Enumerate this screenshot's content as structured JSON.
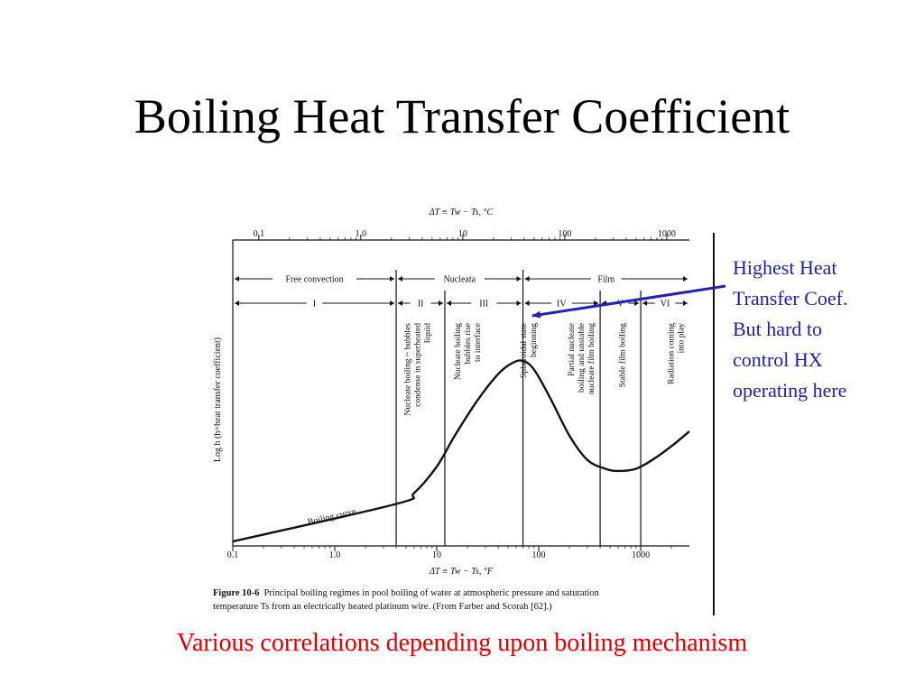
{
  "slide": {
    "title": "Boiling Heat Transfer Coefficient",
    "subtitle": "Various correlations depending upon boiling mechanism"
  },
  "callout": {
    "lines": [
      "Highest Heat",
      "Transfer Coef.",
      "But hard to",
      "control HX",
      "operating here"
    ]
  },
  "colors": {
    "title": "#000000",
    "callout": "#1f1fa8",
    "arrow": "#2222bb",
    "subtitle": "#e00000",
    "figure_ink": "#111111"
  },
  "chart_data": {
    "type": "line",
    "title": "",
    "x_top_label": "ΔT ≡ Tw − Ts, °C",
    "x_bottom_label": "ΔT ≡ Tw − Ts, °F",
    "ylabel": "Log h (h=heat transfer coefficient)",
    "x_scale": "log",
    "xlim_F": [
      0.1,
      3000
    ],
    "ylim": [
      0,
      1
    ],
    "ticks_top_C": [
      {
        "value": 0.1,
        "label": "0.1"
      },
      {
        "value": 1.0,
        "label": "1.0"
      },
      {
        "value": 10,
        "label": "10"
      },
      {
        "value": 100,
        "label": "100"
      },
      {
        "value": 1000,
        "label": "1000"
      }
    ],
    "ticks_bottom_F": [
      {
        "value": 0.1,
        "label": "0.1"
      },
      {
        "value": 1.0,
        "label": "1.0"
      },
      {
        "value": 10,
        "label": "10"
      },
      {
        "value": 100,
        "label": "100"
      },
      {
        "value": 1000,
        "label": "1000"
      }
    ],
    "regime_groups": [
      {
        "label": "Free convection",
        "from": 0.1,
        "to": 4
      },
      {
        "label": "Nucleata",
        "from": 4,
        "to": 70
      },
      {
        "label": "Film",
        "from": 70,
        "to": 3000
      }
    ],
    "regimes": [
      {
        "label": "I",
        "from": 0.1,
        "to": 4
      },
      {
        "label": "II",
        "from": 4,
        "to": 12
      },
      {
        "label": "III",
        "from": 12,
        "to": 70
      },
      {
        "label": "IV",
        "from": 70,
        "to": 400
      },
      {
        "label": "V",
        "from": 400,
        "to": 1000
      },
      {
        "label": "VI",
        "from": 1000,
        "to": 3000
      }
    ],
    "boundaries": [
      4,
      12,
      70,
      400,
      1000
    ],
    "region_notes": [
      {
        "x": 5.5,
        "lines": [
          "Nucleate boiling ~ bubbles",
          "condense in superheated",
          "liquid"
        ]
      },
      {
        "x": 17,
        "lines": [
          "Nucleate boiling",
          "bubbles rise",
          "to interface"
        ]
      },
      {
        "x": 75,
        "lines": [
          "Spheroidal state",
          "beginning"
        ]
      },
      {
        "x": 220,
        "lines": [
          "Partial nucleate",
          "boiling and unstable",
          "nucleate film boiling"
        ]
      },
      {
        "x": 700,
        "lines": [
          "Stable film boiling"
        ]
      },
      {
        "x": 2100,
        "lines": [
          "Radiation coming",
          "into play"
        ]
      }
    ],
    "curve_label": "Boiling curve",
    "series": [
      {
        "name": "Boiling curve",
        "points": [
          [
            0.1,
            0.0
          ],
          [
            4,
            0.17
          ],
          [
            6,
            0.22
          ],
          [
            10,
            0.34
          ],
          [
            15,
            0.48
          ],
          [
            25,
            0.64
          ],
          [
            40,
            0.76
          ],
          [
            55,
            0.81
          ],
          [
            70,
            0.82
          ],
          [
            90,
            0.78
          ],
          [
            130,
            0.65
          ],
          [
            200,
            0.48
          ],
          [
            300,
            0.37
          ],
          [
            450,
            0.33
          ],
          [
            600,
            0.32
          ],
          [
            900,
            0.33
          ],
          [
            1400,
            0.38
          ],
          [
            2100,
            0.44
          ],
          [
            3000,
            0.5
          ]
        ]
      }
    ],
    "peak": {
      "x": 70,
      "y": 0.82
    },
    "caption": {
      "bold": "Figure 10-6",
      "line1": "Principal boiling regimes in pool boiling of water at atmospheric pressure and saturation",
      "line2": "temperature Ts from an electrically heated platinum wire. (From Farber and Scorah [62].)"
    },
    "grid": false,
    "legend": "none"
  }
}
